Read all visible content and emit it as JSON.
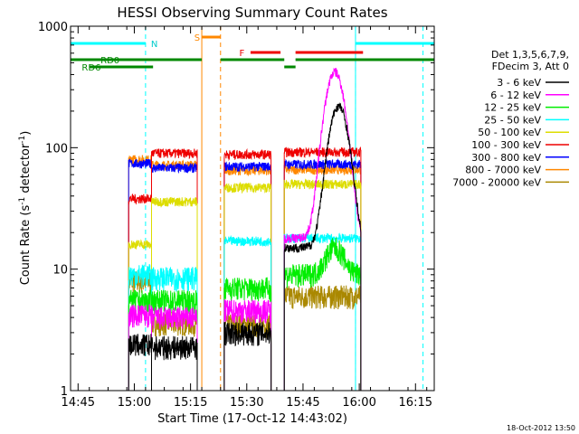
{
  "chart_data": {
    "type": "line",
    "title": "HESSI Observing Summary Count Rates",
    "xlabel": "Start Time (17-Oct-12 14:43:02)",
    "ylabel_parts": [
      "Count Rate (s",
      "-1",
      " detector",
      "-1",
      ")"
    ],
    "yscale": "log",
    "ylim": [
      1,
      1000
    ],
    "xlim_minutes": [
      0,
      97
    ],
    "x_ticks": [
      {
        "m": 2,
        "label": "14:45"
      },
      {
        "m": 17,
        "label": "15:00"
      },
      {
        "m": 32,
        "label": "15:15"
      },
      {
        "m": 47,
        "label": "15:30"
      },
      {
        "m": 62,
        "label": "15:45"
      },
      {
        "m": 77,
        "label": "16:00"
      },
      {
        "m": 92,
        "label": "16:15"
      }
    ],
    "y_ticks": [
      {
        "v": 1,
        "label": "1"
      },
      {
        "v": 10,
        "label": "10"
      },
      {
        "v": 100,
        "label": "100"
      },
      {
        "v": 1000,
        "label": "1000"
      }
    ],
    "legend_header": [
      "Det 1,3,5,6,7,9,",
      "FDecim 3, Att 0"
    ],
    "legend_position": "right",
    "series": [
      {
        "name": "3 - 6 keV",
        "color": "#000000"
      },
      {
        "name": "6 - 12 keV",
        "color": "#ff00ff"
      },
      {
        "name": "12 - 25 keV",
        "color": "#00ee00"
      },
      {
        "name": "25 - 50 keV",
        "color": "#00ffff"
      },
      {
        "name": "50 - 100 keV",
        "color": "#dddd00"
      },
      {
        "name": "100 - 300 keV",
        "color": "#ee0000"
      },
      {
        "name": "300 - 800 keV",
        "color": "#0000ff"
      },
      {
        "name": "800 - 7000 keV",
        "color": "#ff8800"
      },
      {
        "name": "7000 - 20000 keV",
        "color": "#aa8800"
      }
    ],
    "data_segments": [
      {
        "start": 15.5,
        "end": 21.6,
        "values": [
          2.4,
          4.2,
          5.5,
          9.0,
          16,
          38,
          74,
          80,
          8.0
        ]
      },
      {
        "start": 21.6,
        "end": 33.8,
        "values": [
          2.3,
          4.0,
          5.5,
          8.5,
          36,
          90,
          68,
          72,
          3.6
        ]
      },
      {
        "start": 41.0,
        "end": 53.5,
        "values": [
          3.0,
          4.6,
          7.0,
          17,
          47,
          88,
          70,
          65,
          3.5
        ]
      },
      {
        "start": 57.0,
        "end": 77.5,
        "values": [
          15,
          18,
          9.0,
          18,
          50,
          92,
          73,
          66,
          6.0
        ]
      }
    ],
    "peaks": [
      {
        "series": "3 - 6 keV",
        "m": 71.5,
        "value": 220
      },
      {
        "series": "6 - 12 keV",
        "m": 70.5,
        "value": 420
      },
      {
        "series": "12 - 25 keV",
        "m": 70.5,
        "value": 15
      }
    ],
    "status_flags": {
      "N_label": "N",
      "RD0_label": "RD0",
      "RD6_label": "RD6",
      "S_label": "S",
      "F_label": "F",
      "night": [
        [
          0,
          20
        ],
        [
          76,
          97
        ]
      ],
      "saa": [
        [
          35,
          40
        ]
      ],
      "flare": [
        [
          48,
          56
        ],
        [
          60,
          78
        ]
      ],
      "rd0": [
        [
          0,
          35
        ],
        [
          40,
          57
        ],
        [
          60,
          97
        ]
      ],
      "rd6": [
        [
          5,
          22
        ],
        [
          57,
          60
        ]
      ],
      "night_bounds": [
        20,
        76,
        94
      ],
      "saa_bounds": [
        35,
        40
      ]
    }
  },
  "footer": {
    "timestamp": "18-Oct-2012 13:50"
  }
}
